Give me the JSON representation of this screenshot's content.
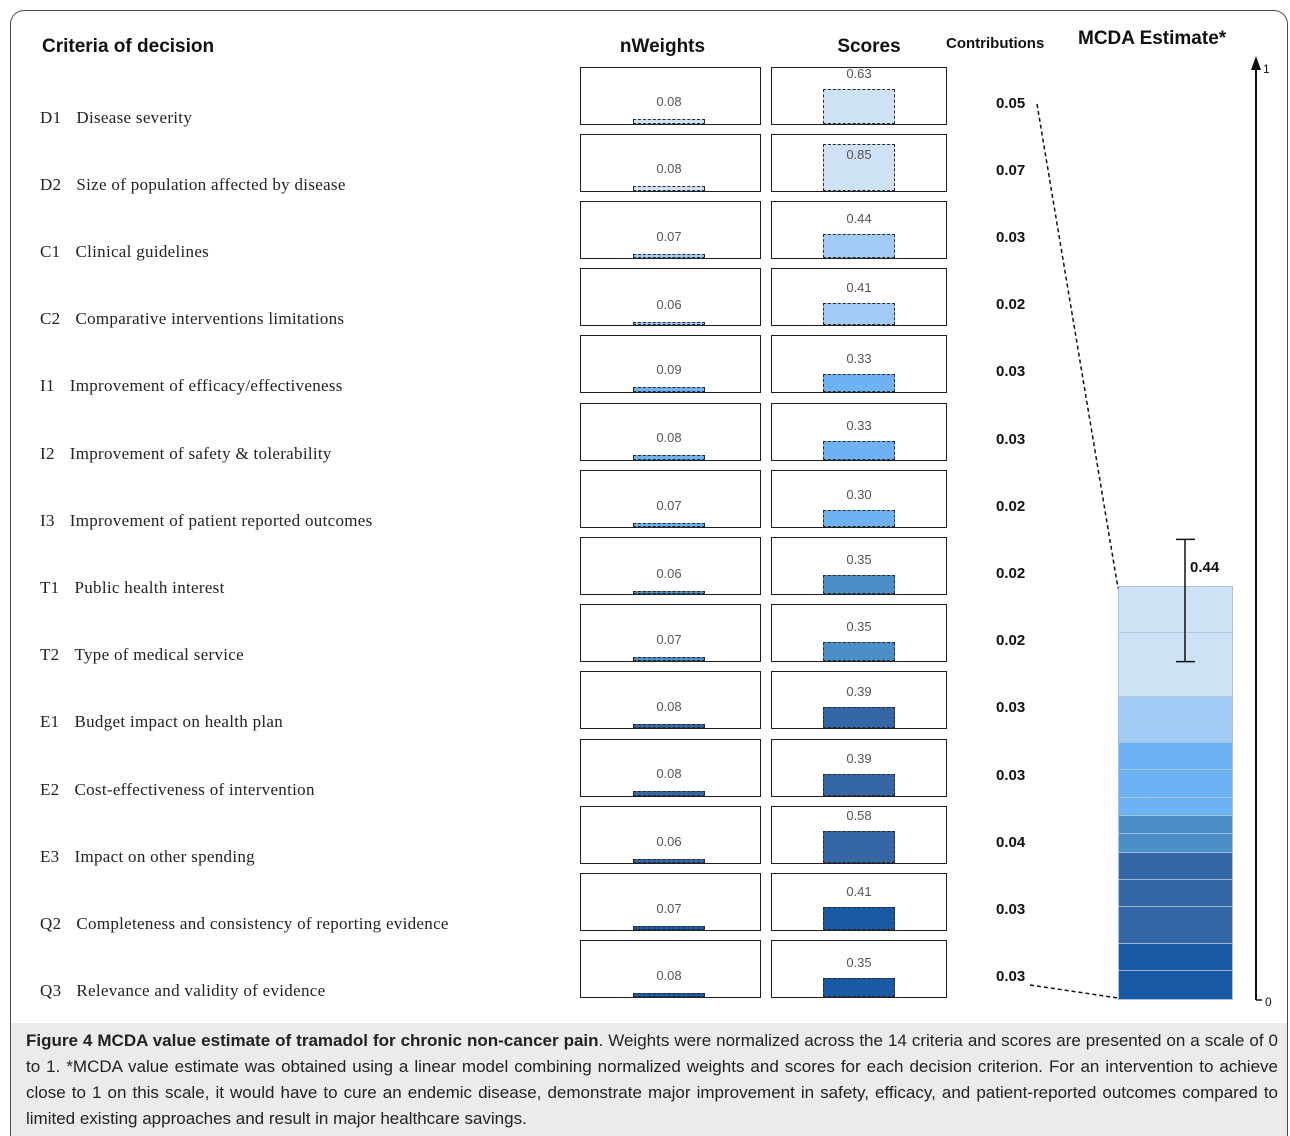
{
  "chart_data": {
    "type": "bar",
    "categories_title": "Criteria of decision",
    "categories": [
      {
        "code": "D1",
        "name": "Disease severity"
      },
      {
        "code": "D2",
        "name": "Size of population affected by disease"
      },
      {
        "code": "C1",
        "name": "Clinical guidelines"
      },
      {
        "code": "C2",
        "name": "Comparative interventions limitations"
      },
      {
        "code": "I1",
        "name": "Improvement of efficacy/effectiveness"
      },
      {
        "code": "I2",
        "name": "Improvement of safety & tolerability"
      },
      {
        "code": "I3",
        "name": "Improvement of patient reported outcomes"
      },
      {
        "code": "T1",
        "name": "Public health interest"
      },
      {
        "code": "T2",
        "name": "Type of medical service"
      },
      {
        "code": "E1",
        "name": "Budget impact on health plan"
      },
      {
        "code": "E2",
        "name": "Cost-effectiveness of intervention"
      },
      {
        "code": "E3",
        "name": "Impact on other spending"
      },
      {
        "code": "Q2",
        "name": "Completeness and consistency of reporting evidence"
      },
      {
        "code": "Q3",
        "name": "Relevance and validity of evidence"
      }
    ],
    "series": [
      {
        "name": "nWeights",
        "values": [
          0.08,
          0.08,
          0.07,
          0.06,
          0.09,
          0.08,
          0.07,
          0.06,
          0.07,
          0.08,
          0.08,
          0.06,
          0.07,
          0.08
        ]
      },
      {
        "name": "Scores",
        "values": [
          0.63,
          0.85,
          0.44,
          0.41,
          0.33,
          0.33,
          0.3,
          0.35,
          0.35,
          0.39,
          0.39,
          0.58,
          0.41,
          0.35
        ]
      },
      {
        "name": "Contributions",
        "values": [
          0.05,
          0.07,
          0.03,
          0.02,
          0.03,
          0.03,
          0.02,
          0.02,
          0.02,
          0.03,
          0.03,
          0.04,
          0.03,
          0.03
        ]
      }
    ],
    "colors": [
      "#cfe2f5",
      "#cfe2f5",
      "#a2ccf5",
      "#a2ccf5",
      "#6db3f4",
      "#6db3f4",
      "#6db3f4",
      "#4c8fc8",
      "#4c8fc8",
      "#3567a6",
      "#3567a6",
      "#3567a6",
      "#1a5aa5",
      "#1a5aa5"
    ],
    "estimate": {
      "name": "MCDA Estimate*",
      "value": 0.44,
      "error_range": [
        0.36,
        0.49
      ],
      "ylim": [
        0,
        1
      ]
    }
  },
  "caption": {
    "label": "Figure 4",
    "title": "MCDA value estimate of tramadol for chronic non-cancer pain",
    "text": ". Weights were normalized across the 14 criteria and scores are presented on a scale of 0 to 1. *MCDA value estimate was obtained using a linear model combining normalized weights and scores for each decision criterion. For an intervention to achieve close to 1 on this scale, it would have to cure an endemic disease, demonstrate major improvement in safety, efficacy, and patient-reported outcomes compared to limited existing approaches and result in major healthcare savings."
  }
}
